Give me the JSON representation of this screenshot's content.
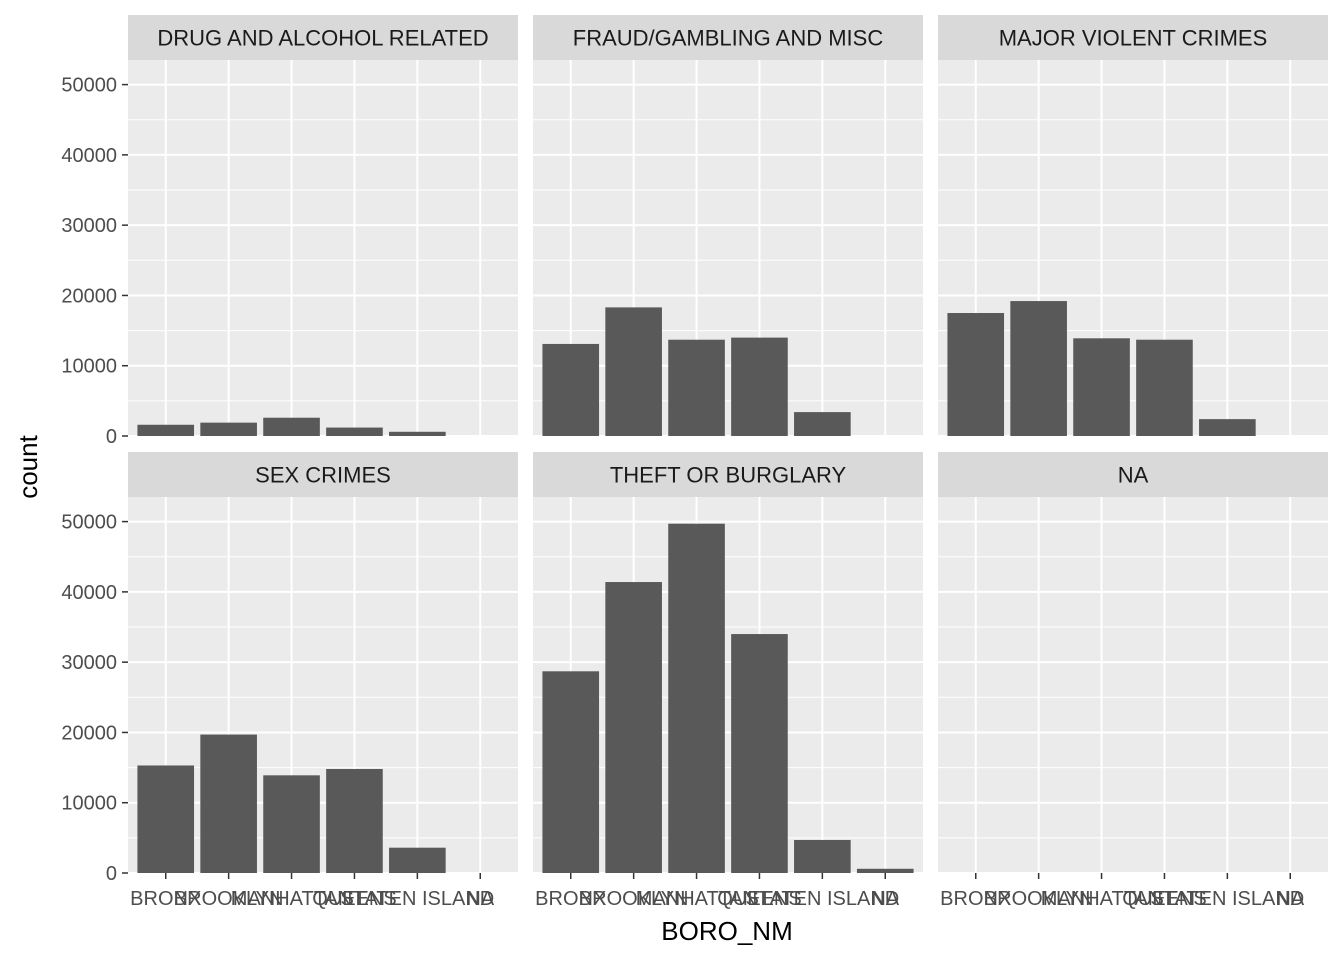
{
  "chart_data": {
    "type": "bar",
    "xlabel": "BORO_NM",
    "ylabel": "count",
    "categories": [
      "BRONX",
      "BROOKLYN",
      "MANHATTAN",
      "QUEENS",
      "STATEN ISLAND",
      "NA"
    ],
    "ylim": [
      0,
      53500
    ],
    "yticks": [
      0,
      10000,
      20000,
      30000,
      40000,
      50000
    ],
    "ytick_labels": [
      "0",
      "10000",
      "20000",
      "30000",
      "40000",
      "50000"
    ],
    "grid": true,
    "facets": [
      {
        "name": "DRUG AND ALCOHOL RELATED",
        "values": [
          1600,
          1900,
          2600,
          1200,
          600,
          0
        ]
      },
      {
        "name": "FRAUD/GAMBLING AND MISC",
        "values": [
          13100,
          18300,
          13700,
          14000,
          3400,
          0
        ]
      },
      {
        "name": "MAJOR VIOLENT CRIMES",
        "values": [
          17500,
          19200,
          13900,
          13700,
          2400,
          0
        ]
      },
      {
        "name": "SEX CRIMES",
        "values": [
          15300,
          19700,
          13900,
          14800,
          3600,
          0
        ]
      },
      {
        "name": "THEFT OR BURGLARY",
        "values": [
          28700,
          41400,
          49700,
          34000,
          4700,
          600
        ]
      },
      {
        "name": "NA",
        "values": [
          0,
          0,
          0,
          0,
          0,
          0
        ]
      }
    ]
  },
  "colors": {
    "bar": "#595959",
    "panel": "#ebebeb",
    "strip": "#d9d9d9",
    "grid": "#ffffff"
  }
}
